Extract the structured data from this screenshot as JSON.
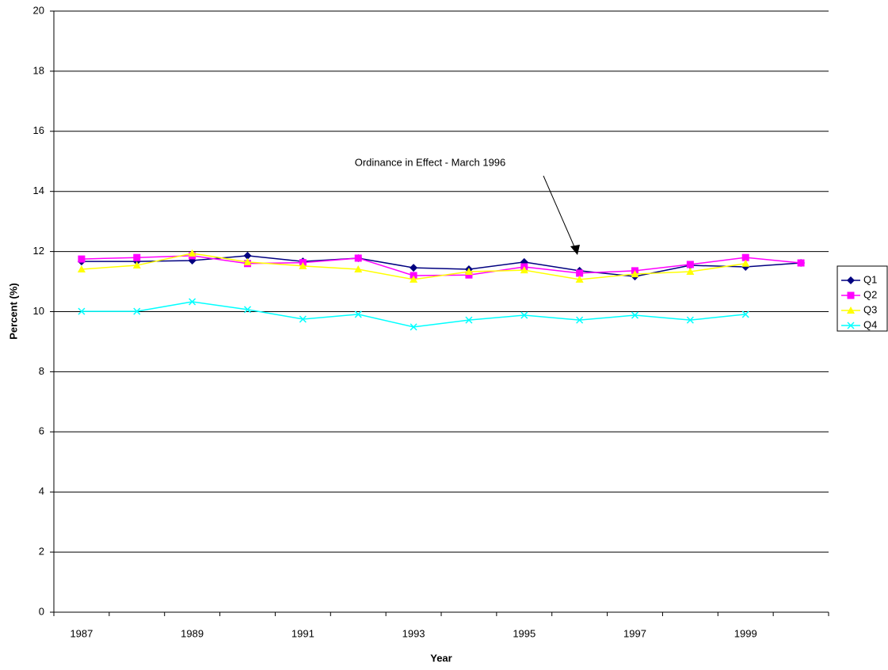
{
  "chart_data": {
    "type": "line",
    "x_label": "Year",
    "y_label": "Percent (%)",
    "annotation": "Ordinance in Effect - March 1996",
    "categories": [
      "1987",
      null,
      "1989",
      null,
      "1991",
      null,
      "1993",
      null,
      "1995",
      null,
      "1997",
      null,
      "1999",
      null
    ],
    "ylim": [
      0,
      20
    ],
    "yticks": [
      0,
      2,
      4,
      6,
      8,
      10,
      12,
      14,
      16,
      18,
      20
    ],
    "grid": true,
    "legend": "right",
    "series": [
      {
        "name": "Q1",
        "color": "#000080",
        "marker": "diamond",
        "values": [
          11.67,
          11.67,
          11.7,
          11.86,
          11.67,
          11.78,
          11.46,
          11.41,
          11.65,
          11.36,
          11.17,
          11.54,
          11.49,
          11.62
        ]
      },
      {
        "name": "Q2",
        "color": "#ff00ff",
        "marker": "square",
        "values": [
          11.75,
          11.8,
          11.86,
          11.6,
          11.63,
          11.78,
          11.2,
          11.22,
          11.49,
          11.28,
          11.36,
          11.57,
          11.8,
          11.62
        ]
      },
      {
        "name": "Q3",
        "color": "#ffff00",
        "marker": "triangle",
        "values": [
          11.41,
          11.54,
          11.94,
          11.65,
          11.52,
          11.41,
          11.07,
          11.33,
          11.38,
          11.07,
          11.25,
          11.33,
          11.6,
          null
        ]
      },
      {
        "name": "Q4",
        "color": "#00ffff",
        "marker": "x",
        "values": [
          10.01,
          10.01,
          10.33,
          10.07,
          9.75,
          9.91,
          9.49,
          9.72,
          9.88,
          9.72,
          9.88,
          9.72,
          9.91,
          null
        ]
      }
    ]
  }
}
